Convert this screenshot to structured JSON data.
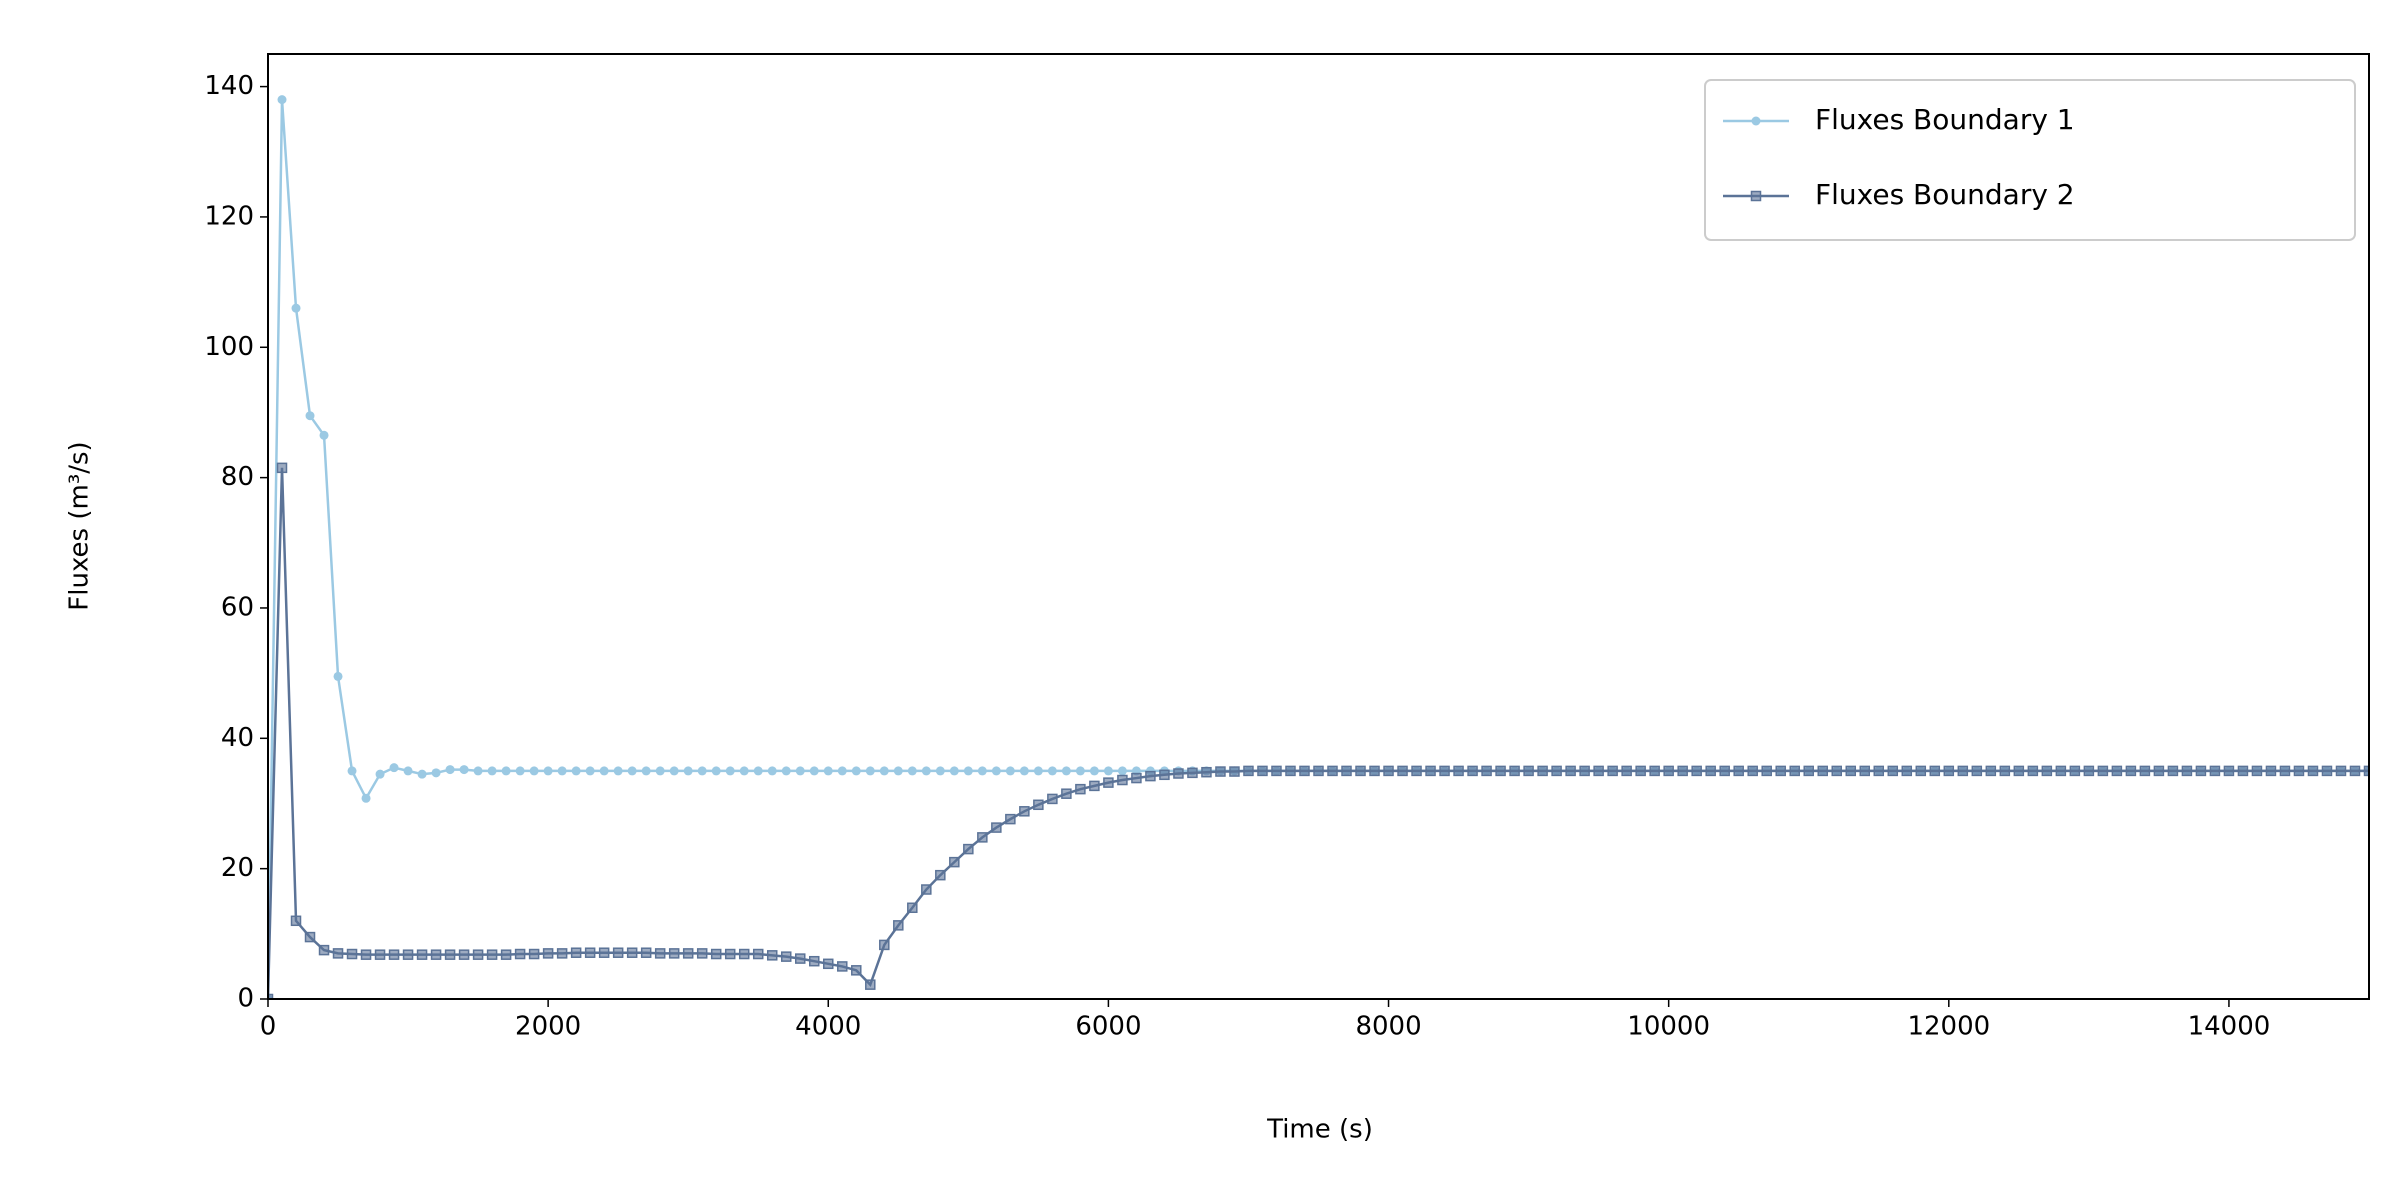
{
  "chart_data": {
    "type": "line",
    "x_label": "Time (s)",
    "y_label": "Fluxes (m³/s)",
    "x": [
      0,
      100,
      200,
      300,
      400,
      500,
      600,
      700,
      800,
      900,
      1000,
      1100,
      1200,
      1300,
      1400,
      1500,
      1600,
      1700,
      1800,
      1900,
      2000,
      2100,
      2200,
      2300,
      2400,
      2500,
      2600,
      2700,
      2800,
      2900,
      3000,
      3100,
      3200,
      3300,
      3400,
      3500,
      3600,
      3700,
      3800,
      3900,
      4000,
      4100,
      4200,
      4300,
      4400,
      4500,
      4600,
      4700,
      4800,
      4900,
      5000,
      5100,
      5200,
      5300,
      5400,
      5500,
      5600,
      5700,
      5800,
      5900,
      6000,
      6100,
      6200,
      6300,
      6400,
      6500,
      6600,
      6700,
      6800,
      6900,
      7000,
      7100,
      7200,
      7300,
      7400,
      7500,
      7600,
      7700,
      7800,
      7900,
      8000,
      8100,
      8200,
      8300,
      8400,
      8500,
      8600,
      8700,
      8800,
      8900,
      9000,
      9100,
      9200,
      9300,
      9400,
      9500,
      9600,
      9700,
      9800,
      9900,
      10000,
      10100,
      10200,
      10300,
      10400,
      10500,
      10600,
      10700,
      10800,
      10900,
      11000,
      11100,
      11200,
      11300,
      11400,
      11500,
      11600,
      11700,
      11800,
      11900,
      12000,
      12100,
      12200,
      12300,
      12400,
      12500,
      12600,
      12700,
      12800,
      12900,
      13000,
      13100,
      13200,
      13300,
      13400,
      13500,
      13600,
      13700,
      13800,
      13900,
      14000,
      14100,
      14200,
      14300,
      14400,
      14500,
      14600,
      14700,
      14800,
      14900,
      15000
    ],
    "series": [
      {
        "name": "Fluxes Boundary 1",
        "color": "#9bc9e3",
        "marker": "circle",
        "values": [
          0,
          138,
          106,
          89.5,
          86.5,
          49.5,
          35,
          30.8,
          34.5,
          35.5,
          35,
          34.5,
          34.7,
          35.2,
          35.2,
          35,
          35,
          35,
          35,
          35,
          35,
          35,
          35,
          35,
          35,
          35,
          35,
          35,
          35,
          35,
          35,
          35,
          35,
          35,
          35,
          35,
          35,
          35,
          35,
          35,
          35,
          35,
          35,
          35,
          35,
          35,
          35,
          35,
          35,
          35,
          35,
          35,
          35,
          35,
          35,
          35,
          35,
          35,
          35,
          35,
          35,
          35,
          35,
          35,
          35,
          35,
          35,
          35,
          35,
          35,
          35,
          35,
          35,
          35,
          35,
          35,
          35,
          35,
          35,
          35,
          35,
          35,
          35,
          35,
          35,
          35,
          35,
          35,
          35,
          35,
          35,
          35,
          35,
          35,
          35,
          35,
          35,
          35,
          35,
          35,
          35,
          35,
          35,
          35,
          35,
          35,
          35,
          35,
          35,
          35,
          35,
          35,
          35,
          35,
          35,
          35,
          35,
          35,
          35,
          35,
          35,
          35,
          35,
          35,
          35,
          35,
          35,
          35,
          35,
          35,
          35,
          35,
          35,
          35,
          35,
          35,
          35,
          35,
          35,
          35,
          35,
          35,
          35,
          35,
          35,
          35,
          35,
          35,
          35,
          35,
          35
        ]
      },
      {
        "name": "Fluxes Boundary 2",
        "color": "#5b7397",
        "marker": "square",
        "values": [
          0,
          81.5,
          12,
          9.5,
          7.5,
          7,
          6.9,
          6.8,
          6.8,
          6.8,
          6.8,
          6.8,
          6.8,
          6.8,
          6.8,
          6.8,
          6.8,
          6.8,
          6.9,
          6.9,
          7,
          7,
          7.1,
          7.1,
          7.1,
          7.1,
          7.1,
          7.1,
          7,
          7,
          7,
          7,
          6.9,
          6.9,
          6.9,
          6.9,
          6.7,
          6.5,
          6.2,
          5.8,
          5.4,
          5,
          4.4,
          2.2,
          8.3,
          11.3,
          14,
          16.8,
          19,
          21,
          23,
          24.8,
          26.3,
          27.6,
          28.8,
          29.8,
          30.7,
          31.5,
          32.2,
          32.7,
          33.2,
          33.6,
          33.9,
          34.2,
          34.4,
          34.6,
          34.7,
          34.8,
          34.9,
          34.9,
          35,
          35,
          35,
          35,
          35,
          35,
          35,
          35,
          35,
          35,
          35,
          35,
          35,
          35,
          35,
          35,
          35,
          35,
          35,
          35,
          35,
          35,
          35,
          35,
          35,
          35,
          35,
          35,
          35,
          35,
          35,
          35,
          35,
          35,
          35,
          35,
          35,
          35,
          35,
          35,
          35,
          35,
          35,
          35,
          35,
          35,
          35,
          35,
          35,
          35,
          35,
          35,
          35,
          35,
          35,
          35,
          35,
          35,
          35,
          35,
          35,
          35,
          35,
          35,
          35,
          35,
          35,
          35,
          35,
          35,
          35,
          35,
          35,
          35,
          35,
          35,
          35,
          35,
          35,
          35,
          35
        ]
      }
    ],
    "xlim": [
      0,
      15000
    ],
    "xticks": [
      0,
      2000,
      4000,
      6000,
      8000,
      10000,
      12000,
      14000
    ],
    "ylim": [
      0,
      145
    ],
    "yticks": [
      0,
      20,
      40,
      60,
      80,
      100,
      120,
      140
    ],
    "legend": "upper right"
  }
}
